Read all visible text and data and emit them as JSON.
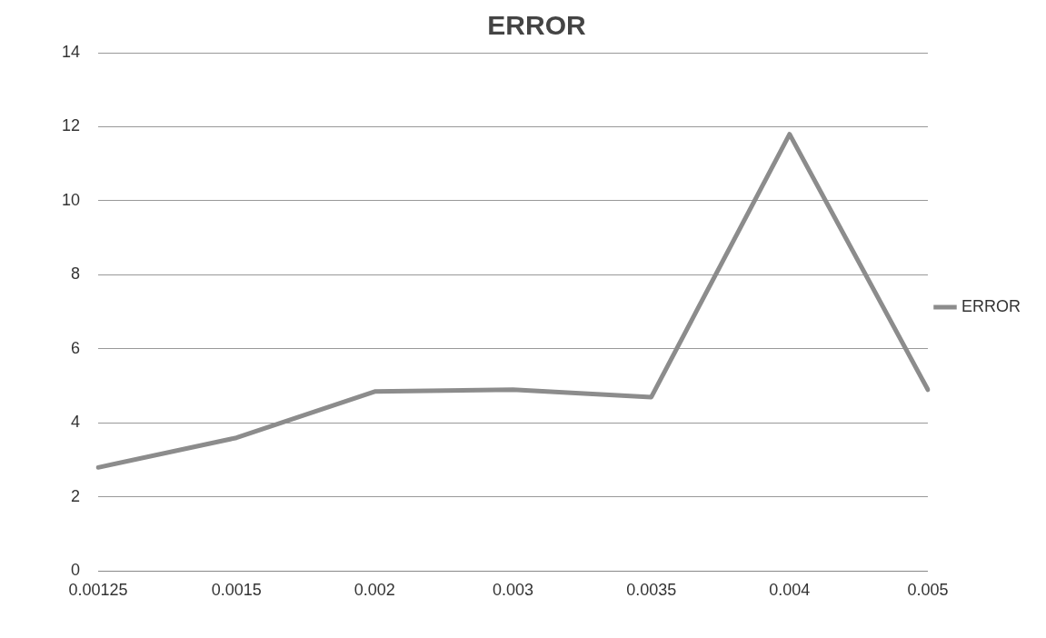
{
  "chart_data": {
    "type": "line",
    "title": "ERROR",
    "categories": [
      "0.00125",
      "0.0015",
      "0.002",
      "0.003",
      "0.0035",
      "0.004",
      "0.005"
    ],
    "series": [
      {
        "name": "ERROR",
        "color": "#8c8c8c",
        "values": [
          2.8,
          3.6,
          4.85,
          4.9,
          4.7,
          11.8,
          4.9
        ]
      }
    ],
    "ylim": [
      0,
      14
    ],
    "yticks": [
      0,
      2,
      4,
      6,
      8,
      10,
      12,
      14
    ],
    "grid": "y",
    "legend": "right",
    "marker": "none",
    "line_style": "solid"
  }
}
